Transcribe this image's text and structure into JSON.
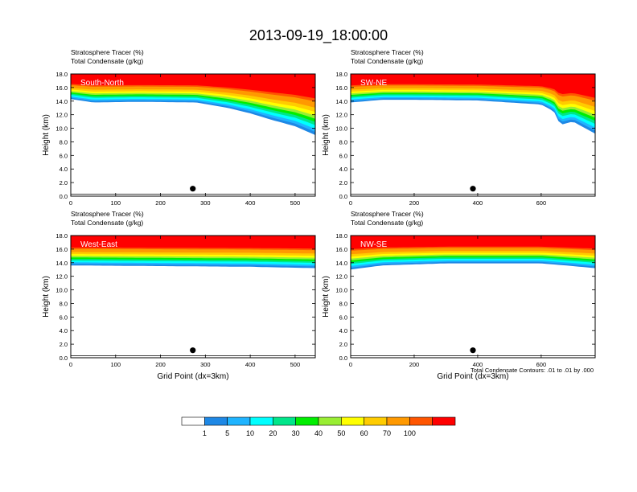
{
  "title": "2013-09-19_18:00:00",
  "footnote": "Total Condensate Contours: .01 to .01 by .000",
  "colorbar": {
    "colors": [
      "#ffffff",
      "#1e88e5",
      "#1fb4ff",
      "#00ffff",
      "#00e68a",
      "#00ee00",
      "#99ee33",
      "#ffff00",
      "#ffcc00",
      "#ff9900",
      "#ff5500",
      "#ff0000"
    ],
    "labels": [
      "1",
      "5",
      "10",
      "20",
      "30",
      "40",
      "50",
      "60",
      "70",
      "100"
    ]
  },
  "chart_data": [
    {
      "type": "heatmap",
      "panel": "South-North",
      "header": [
        "Stratosphere Tracer   (%)",
        "Total Condensate   (g/kg)"
      ],
      "label": "South-North",
      "ylabel": "Height (km)",
      "xlabel": "",
      "xlim": [
        0,
        545
      ],
      "ylim": [
        0,
        18
      ],
      "xticks": [
        "0",
        "100",
        "200",
        "300",
        "400",
        "500"
      ],
      "yticks": [
        "0.0",
        "2.0",
        "4.0",
        "6.0",
        "8.0",
        "10.0",
        "12.0",
        "14.0",
        "16.0",
        "18.0"
      ],
      "tracer_base_km": [
        [
          0,
          14.3
        ],
        [
          50,
          13.8
        ],
        [
          150,
          13.9
        ],
        [
          280,
          13.8
        ],
        [
          350,
          13.0
        ],
        [
          400,
          12.2
        ],
        [
          450,
          11.2
        ],
        [
          500,
          10.3
        ],
        [
          545,
          9.0
        ]
      ],
      "marker": {
        "x": 272,
        "y": 1.1
      }
    },
    {
      "type": "heatmap",
      "panel": "SW-NE",
      "header": [
        "Stratosphere Tracer   (%)",
        "Total Condensate   (g/kg)"
      ],
      "label": "SW-NE",
      "ylabel": "Height (km)",
      "xlabel": "",
      "xlim": [
        0,
        770
      ],
      "ylim": [
        0,
        18
      ],
      "xticks": [
        "0",
        "200",
        "400",
        "600"
      ],
      "yticks": [
        "0.0",
        "2.0",
        "4.0",
        "6.0",
        "8.0",
        "10.0",
        "12.0",
        "14.0",
        "16.0",
        "18.0"
      ],
      "tracer_base_km": [
        [
          0,
          13.8
        ],
        [
          100,
          14.2
        ],
        [
          200,
          14.2
        ],
        [
          400,
          14.1
        ],
        [
          600,
          13.5
        ],
        [
          640,
          12.5
        ],
        [
          660,
          10.5
        ],
        [
          700,
          11.0
        ],
        [
          770,
          9.2
        ]
      ],
      "marker": {
        "x": 385,
        "y": 1.1
      }
    },
    {
      "type": "heatmap",
      "panel": "West-East",
      "header": [
        "Stratosphere Tracer   (%)",
        "Total Condensate   (g/kg)"
      ],
      "label": "West-East",
      "ylabel": "Height (km)",
      "xlabel": "Grid Point (dx=3km)",
      "xlim": [
        0,
        545
      ],
      "ylim": [
        0,
        18
      ],
      "xticks": [
        "0",
        "100",
        "200",
        "300",
        "400",
        "500"
      ],
      "yticks": [
        "0.0",
        "2.0",
        "4.0",
        "6.0",
        "8.0",
        "10.0",
        "12.0",
        "14.0",
        "16.0",
        "18.0"
      ],
      "tracer_base_km": [
        [
          0,
          13.6
        ],
        [
          200,
          13.5
        ],
        [
          400,
          13.4
        ],
        [
          545,
          13.2
        ]
      ],
      "marker": {
        "x": 272,
        "y": 1.1
      }
    },
    {
      "type": "heatmap",
      "panel": "NW-SE",
      "header": [
        "Stratosphere Tracer   (%)",
        "Total Condensate   (g/kg)"
      ],
      "label": "NW-SE",
      "ylabel": "Height (km)",
      "xlabel": "Grid Point (dx=3km)",
      "xlim": [
        0,
        770
      ],
      "ylim": [
        0,
        18
      ],
      "xticks": [
        "0",
        "200",
        "400",
        "600"
      ],
      "yticks": [
        "0.0",
        "2.0",
        "4.0",
        "6.0",
        "8.0",
        "10.0",
        "12.0",
        "14.0",
        "16.0",
        "18.0"
      ],
      "tracer_base_km": [
        [
          0,
          13.0
        ],
        [
          100,
          13.6
        ],
        [
          300,
          13.9
        ],
        [
          600,
          13.9
        ],
        [
          700,
          13.5
        ],
        [
          770,
          13.2
        ]
      ],
      "marker": {
        "x": 385,
        "y": 1.1
      }
    }
  ]
}
